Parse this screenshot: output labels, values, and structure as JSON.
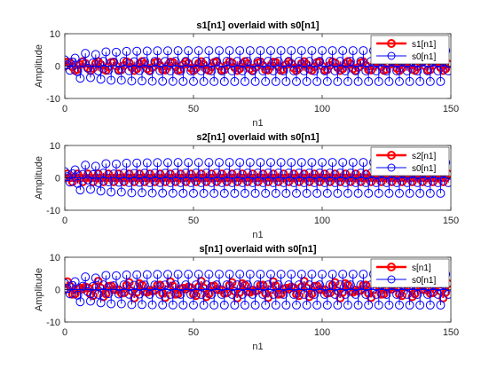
{
  "chart_data": [
    {
      "type": "stem",
      "title": "s1[n1] overlaid with s0[n1]",
      "xlabel": "n1",
      "ylabel": "Amplitude",
      "xlim": [
        0,
        150
      ],
      "ylim": [
        -10,
        10
      ],
      "xticks": [
        0,
        50,
        100,
        150
      ],
      "yticks": [
        -10,
        0,
        10
      ],
      "legend_position": "top-right",
      "series": [
        {
          "name": "s1[n1]",
          "color": "#ff0000",
          "marker": "circle",
          "stem": true,
          "linewidth": "thick",
          "formula": "1.4*sin(0.35*pi*n)",
          "n_range": [
            0,
            149
          ]
        },
        {
          "name": "s0[n1]",
          "color": "#0000ff",
          "marker": "circle",
          "stem": true,
          "linewidth": "thin",
          "formula": "(5-3*exp(-n/10))*cos(0.5*pi*n+0.3) + 1.5*exp(-n/8)*sin(0.9*n)",
          "n_range": [
            0,
            149
          ]
        }
      ]
    },
    {
      "type": "stem",
      "title": "s2[n1] overlaid with s0[n1]",
      "xlabel": "n1",
      "ylabel": "Amplitude",
      "xlim": [
        0,
        150
      ],
      "ylim": [
        -10,
        10
      ],
      "xticks": [
        0,
        50,
        100,
        150
      ],
      "yticks": [
        -10,
        0,
        10
      ],
      "legend_position": "top-right",
      "series": [
        {
          "name": "s2[n1]",
          "color": "#ff0000",
          "marker": "circle",
          "stem": true,
          "linewidth": "thick",
          "formula": "1.2*sin(0.5*pi*n)",
          "n_range": [
            0,
            149
          ]
        },
        {
          "name": "s0[n1]",
          "color": "#0000ff",
          "marker": "circle",
          "stem": true,
          "linewidth": "thin",
          "formula": "(5-3*exp(-n/10))*cos(0.5*pi*n+0.3) + 1.5*exp(-n/8)*sin(0.9*n)",
          "n_range": [
            0,
            149
          ]
        }
      ]
    },
    {
      "type": "stem",
      "title": "s[n1] overlaid with s0[n1]",
      "xlabel": "n1",
      "ylabel": "Amplitude",
      "xlim": [
        0,
        150
      ],
      "ylim": [
        -10,
        10
      ],
      "xticks": [
        0,
        50,
        100,
        150
      ],
      "yticks": [
        -10,
        0,
        10
      ],
      "legend_position": "top-right",
      "series": [
        {
          "name": "s[n1]",
          "color": "#ff0000",
          "marker": "circle",
          "stem": true,
          "linewidth": "thick",
          "formula": "1.4*sin(0.35*pi*n) + 1.2*sin(0.5*pi*n)",
          "n_range": [
            0,
            149
          ]
        },
        {
          "name": "s0[n1]",
          "color": "#0000ff",
          "marker": "circle",
          "stem": true,
          "linewidth": "thin",
          "formula": "(5-3*exp(-n/10))*cos(0.5*pi*n+0.3) + 1.5*exp(-n/8)*sin(0.9*n)",
          "n_range": [
            0,
            149
          ]
        }
      ]
    }
  ]
}
